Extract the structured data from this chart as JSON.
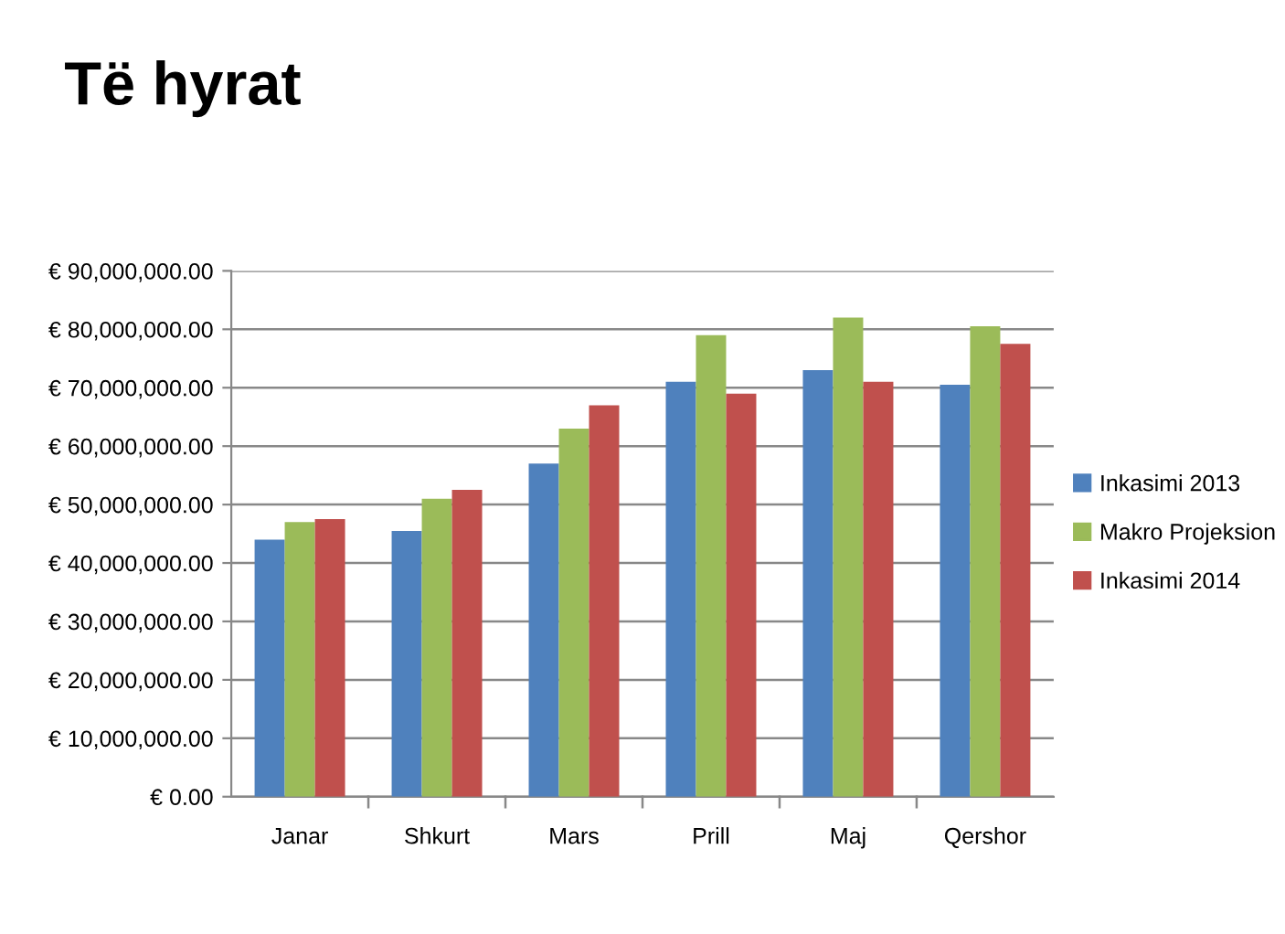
{
  "chart_data": {
    "type": "bar",
    "title": "Të hyrat",
    "categories": [
      "Janar",
      "Shkurt",
      "Mars",
      "Prill",
      "Maj",
      "Qershor"
    ],
    "series": [
      {
        "name": "Inkasimi 2013",
        "color": "#4f81bd",
        "values": [
          44000000,
          45500000,
          57000000,
          71000000,
          73000000,
          70500000
        ]
      },
      {
        "name": "Makro Projeksion",
        "color": "#9bbb59",
        "values": [
          47000000,
          51000000,
          63000000,
          79000000,
          82000000,
          80500000
        ]
      },
      {
        "name": "Inkasimi 2014",
        "color": "#c0504d",
        "values": [
          47500000,
          52500000,
          67000000,
          69000000,
          71000000,
          77500000
        ]
      }
    ],
    "ylim": [
      0,
      90000000
    ],
    "yticks": [
      {
        "value": 0,
        "label": "€ 0.00"
      },
      {
        "value": 10000000,
        "label": "€ 10,000,000.00"
      },
      {
        "value": 20000000,
        "label": "€ 20,000,000.00"
      },
      {
        "value": 30000000,
        "label": "€ 30,000,000.00"
      },
      {
        "value": 40000000,
        "label": "€ 40,000,000.00"
      },
      {
        "value": 50000000,
        "label": "€ 50,000,000.00"
      },
      {
        "value": 60000000,
        "label": "€ 60,000,000.00"
      },
      {
        "value": 70000000,
        "label": "€ 70,000,000.00"
      },
      {
        "value": 80000000,
        "label": "€ 80,000,000.00"
      },
      {
        "value": 90000000,
        "label": "€ 90,000,000.00"
      }
    ],
    "grid": "y",
    "legend": "right"
  }
}
